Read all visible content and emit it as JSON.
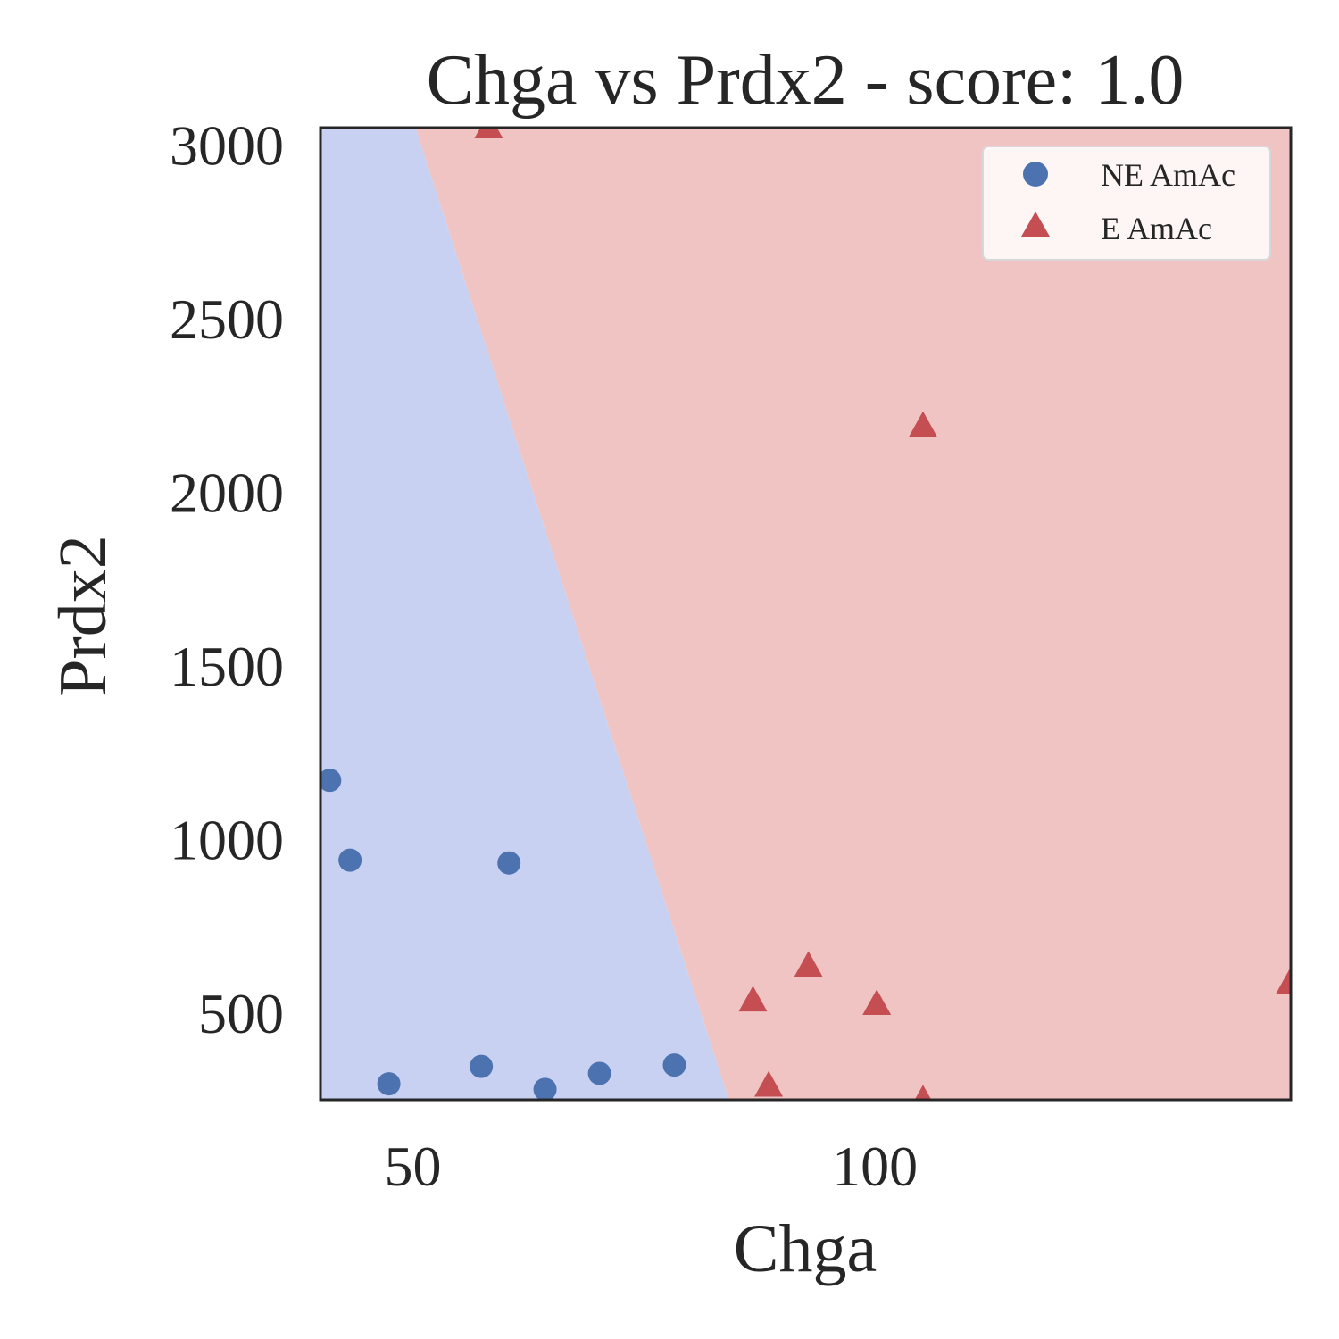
{
  "chart_data": {
    "type": "scatter",
    "title": "Chga vs Prdx2 - score: 1.0",
    "xlabel": "Chga",
    "ylabel": "Prdx2",
    "xlim": [
      40,
      145
    ],
    "ylim": [
      250,
      3050
    ],
    "xticks": [
      50,
      100
    ],
    "yticks": [
      500,
      1000,
      1500,
      2000,
      2500,
      3000
    ],
    "grid": false,
    "legend_position": "top-right",
    "decision_boundary": [
      [
        50.3,
        3050
      ],
      [
        84.2,
        250
      ]
    ],
    "regions": {
      "left": {
        "label": "NE AmAc",
        "color": "#c8d1f1"
      },
      "right": {
        "label": "E AmAc",
        "color": "#efc4c3"
      }
    },
    "series": [
      {
        "name": "NE AmAc",
        "marker": "circle",
        "color": "#4c72b0",
        "points": [
          [
            41,
            1170
          ],
          [
            43.2,
            940
          ],
          [
            47.4,
            296
          ],
          [
            57.4,
            346
          ],
          [
            60.4,
            932
          ],
          [
            64.3,
            280
          ],
          [
            70.2,
            326
          ],
          [
            78.3,
            350
          ]
        ]
      },
      {
        "name": "E AmAc",
        "marker": "triangle",
        "color": "#c44e52",
        "points": [
          [
            58.2,
            3050
          ],
          [
            86.8,
            535
          ],
          [
            88.5,
            290
          ],
          [
            92.8,
            635
          ],
          [
            100.2,
            525
          ],
          [
            105.2,
            2190
          ],
          [
            105.2,
            250
          ],
          [
            144.9,
            585
          ]
        ]
      }
    ]
  }
}
